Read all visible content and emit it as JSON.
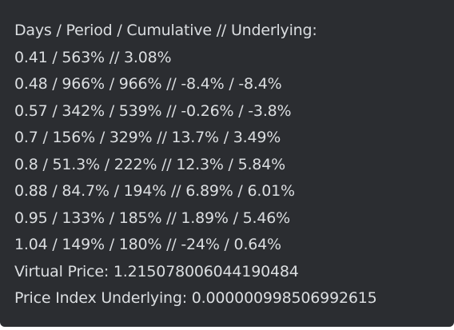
{
  "message": {
    "header": "Days / Period / Cumulative // Underlying:",
    "rows": [
      "0.41 / 563% // 3.08%",
      "0.48 / 966% / 966% // -8.4% / -8.4%",
      "0.57 / 342% / 539% // -0.26% / -3.8%",
      "0.7 / 156% / 329% // 13.7% / 3.49%",
      "0.8 / 51.3% / 222% // 12.3% / 5.84%",
      "0.88 / 84.7% / 194% // 6.89% / 6.01%",
      "0.95 / 133% / 185% // 1.89% / 5.46%",
      "1.04 / 149% / 180% // -24% / 0.64%"
    ],
    "virtual_price": "Virtual Price: 1.215078006044190484",
    "price_index": "Price Index Underlying: 0.000000998506992615"
  },
  "colors": {
    "background": "#2b2d31",
    "text": "#dbdee1"
  }
}
